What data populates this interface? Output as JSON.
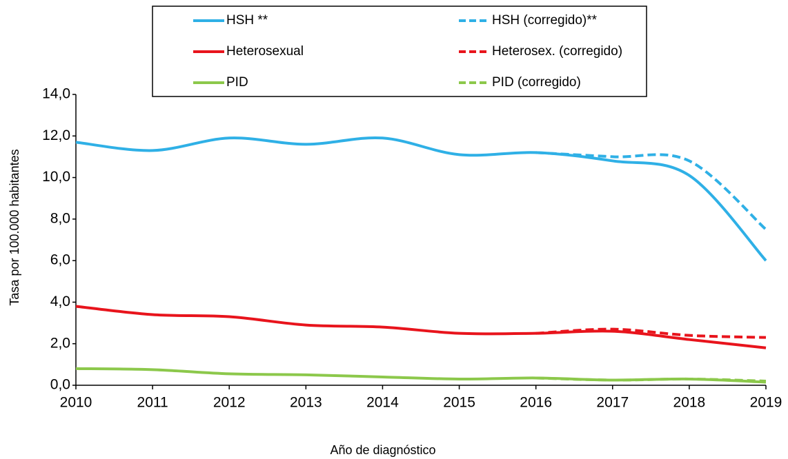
{
  "chart_data": {
    "type": "line",
    "categories": [
      "2010",
      "2011",
      "2012",
      "2013",
      "2014",
      "2015",
      "2016",
      "2017",
      "2018",
      "2019"
    ],
    "x_label": "Año de diagnóstico",
    "y_label": "Tasa  por 100.000 habitantes",
    "ylim": [
      0,
      14
    ],
    "yticks": [
      {
        "value": 0,
        "label": "0,0"
      },
      {
        "value": 2,
        "label": "2,0"
      },
      {
        "value": 4,
        "label": "4,0"
      },
      {
        "value": 6,
        "label": "6,0"
      },
      {
        "value": 8,
        "label": "8,0"
      },
      {
        "value": 10,
        "label": "10,0"
      },
      {
        "value": 12,
        "label": "12,0"
      },
      {
        "value": 14,
        "label": "14,0"
      }
    ],
    "grid": false,
    "legend": "top",
    "series": [
      {
        "name": "HSH **",
        "color": "#2fb0e6",
        "dashed": false,
        "values": [
          11.7,
          11.3,
          11.9,
          11.6,
          11.9,
          11.1,
          11.2,
          10.8,
          10.1,
          6.0
        ]
      },
      {
        "name": "HSH (corregido)**",
        "color": "#2fb0e6",
        "dashed": true,
        "values": [
          null,
          null,
          null,
          null,
          null,
          null,
          11.2,
          11.0,
          10.8,
          7.5
        ]
      },
      {
        "name": "Heterosexual",
        "color": "#e8141c",
        "dashed": false,
        "values": [
          3.8,
          3.4,
          3.3,
          2.9,
          2.8,
          2.5,
          2.5,
          2.6,
          2.2,
          1.8
        ]
      },
      {
        "name": "Heterosex. (corregido)",
        "color": "#e8141c",
        "dashed": true,
        "values": [
          null,
          null,
          null,
          null,
          null,
          null,
          2.5,
          2.7,
          2.4,
          2.3
        ]
      },
      {
        "name": "PID",
        "color": "#8cc84b",
        "dashed": false,
        "values": [
          0.8,
          0.75,
          0.55,
          0.5,
          0.4,
          0.3,
          0.35,
          0.25,
          0.3,
          0.15
        ]
      },
      {
        "name": "PID (corregido)",
        "color": "#8cc84b",
        "dashed": true,
        "values": [
          null,
          null,
          null,
          null,
          null,
          null,
          0.35,
          0.25,
          0.3,
          0.2
        ]
      }
    ]
  }
}
